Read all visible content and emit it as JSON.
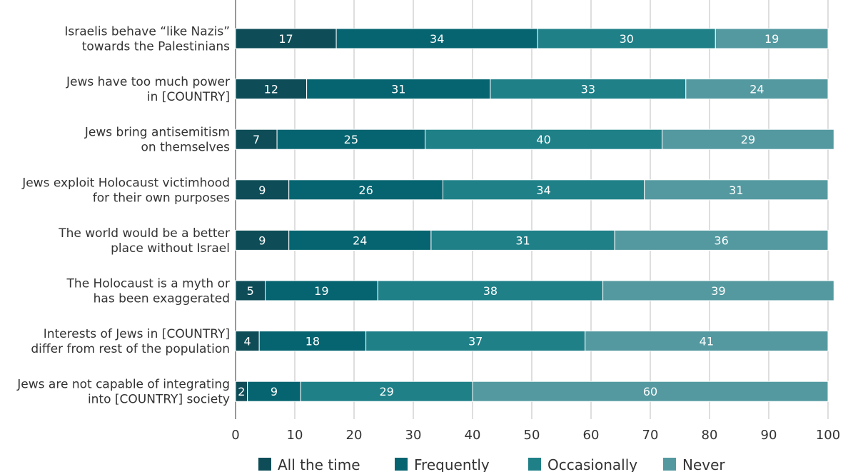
{
  "chart_data": {
    "type": "bar",
    "orientation": "horizontal",
    "stacked": true,
    "categories": [
      [
        "Israelis behave “like Nazis”",
        "towards the Palestinians"
      ],
      [
        "Jews have too much power",
        "in [COUNTRY]"
      ],
      [
        "Jews bring antisemitism",
        "on themselves"
      ],
      [
        "Jews exploit Holocaust victimhood",
        "for their own purposes"
      ],
      [
        "The world would be a better",
        "place without Israel"
      ],
      [
        "The Holocaust is a myth or",
        "has been exaggerated"
      ],
      [
        "Interests of Jews in [COUNTRY]",
        "differ from rest of the population"
      ],
      [
        "Jews are not capable of integrating",
        "into [COUNTRY] society"
      ]
    ],
    "series": [
      {
        "name": "All the time",
        "color": "#0e4d58",
        "values": [
          17,
          12,
          7,
          9,
          9,
          5,
          4,
          2
        ]
      },
      {
        "name": "Frequently",
        "color": "#056470",
        "values": [
          34,
          31,
          25,
          26,
          24,
          19,
          18,
          9
        ]
      },
      {
        "name": "Occasionally",
        "color": "#1f8088",
        "values": [
          30,
          33,
          40,
          34,
          31,
          38,
          37,
          29
        ]
      },
      {
        "name": "Never",
        "color": "#5499a0",
        "values": [
          19,
          24,
          29,
          31,
          36,
          39,
          41,
          60
        ]
      }
    ],
    "xlim": [
      0,
      100
    ],
    "xticks": [
      0,
      10,
      20,
      30,
      40,
      50,
      60,
      70,
      80,
      90,
      100
    ],
    "grid": true,
    "legend_position": "bottom"
  }
}
